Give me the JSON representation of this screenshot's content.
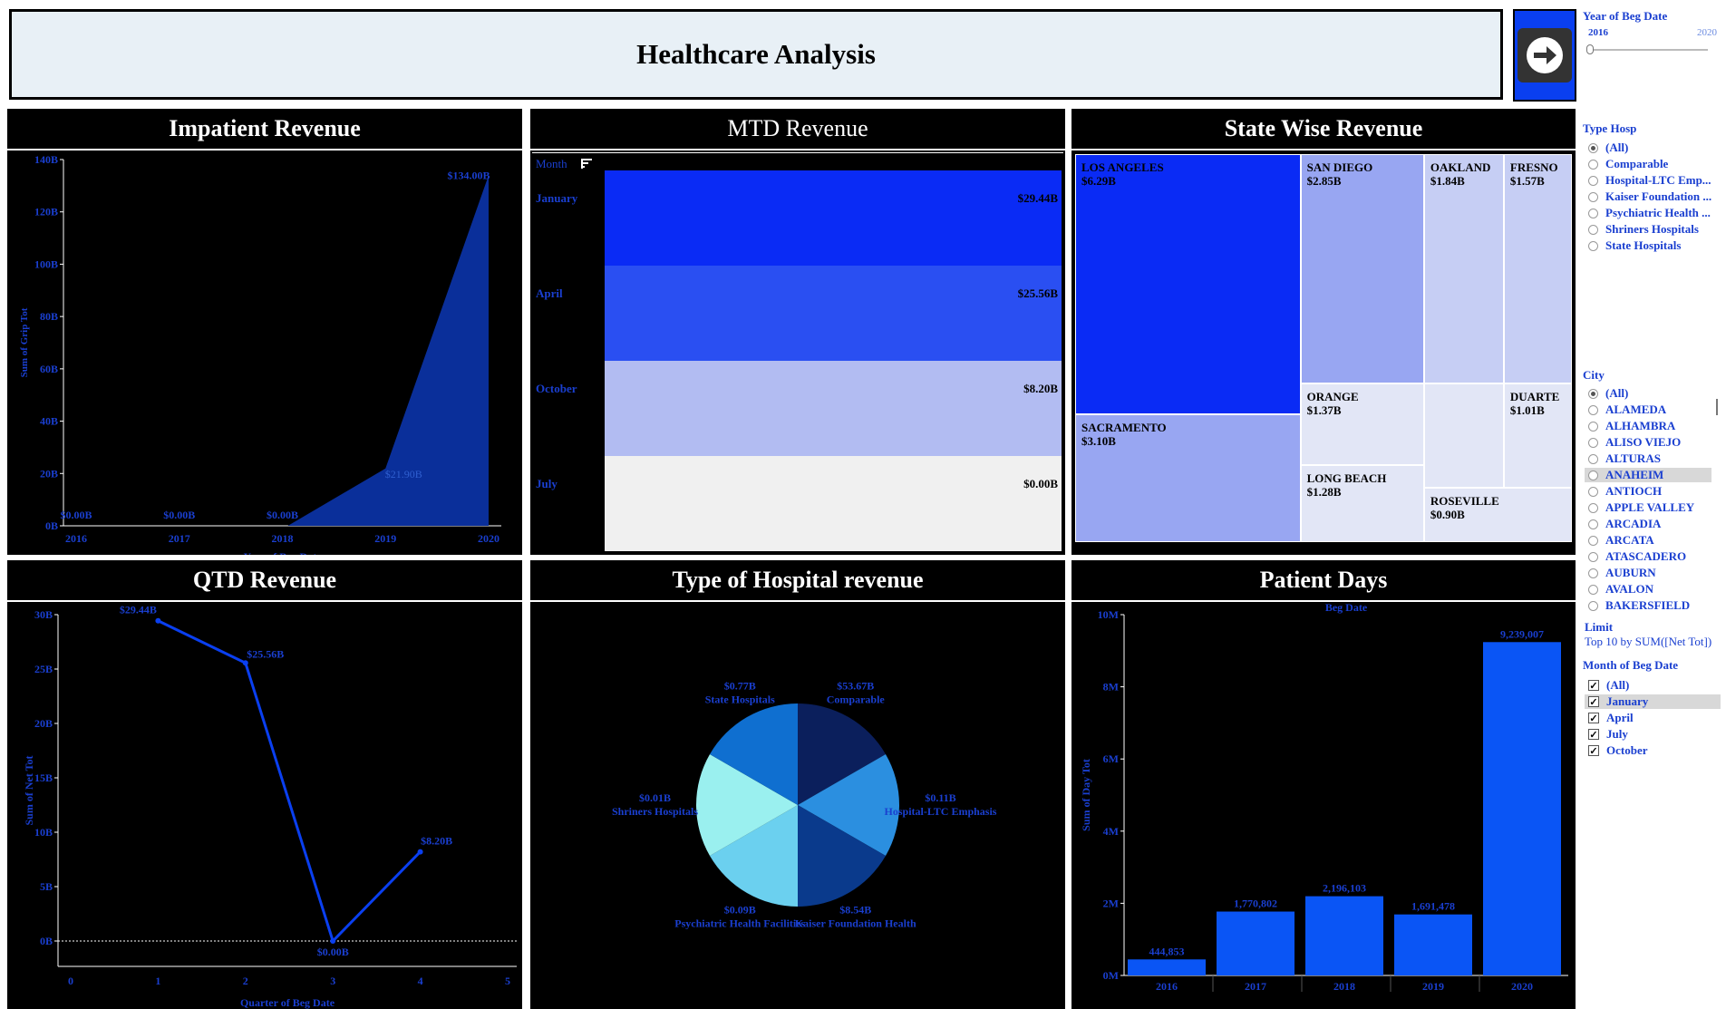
{
  "header": {
    "title": "Healthcare Analysis"
  },
  "filters": {
    "year": {
      "title": "Year of Beg Date",
      "min_label": "2016",
      "max_label": "2020"
    },
    "type_hosp": {
      "title": "Type Hosp",
      "options": [
        "(All)",
        "Comparable",
        "Hospital-LTC Emp...",
        "Kaiser Foundation ...",
        "Psychiatric Health ...",
        "Shriners Hospitals",
        "State Hospitals"
      ],
      "selected": "(All)"
    },
    "city": {
      "title": "City",
      "options": [
        "(All)",
        "ALAMEDA",
        "ALHAMBRA",
        "ALISO VIEJO",
        "ALTURAS",
        "ANAHEIM",
        "ANTIOCH",
        "APPLE VALLEY",
        "ARCADIA",
        "ARCATA",
        "ATASCADERO",
        "AUBURN",
        "AVALON",
        "BAKERSFIELD"
      ],
      "selected": "(All)",
      "hovered": "ANAHEIM"
    },
    "limit": {
      "title": "Limit",
      "text": "Top 10 by SUM([Net Tot])"
    },
    "month": {
      "title": "Month of Beg Date",
      "options": [
        "(All)",
        "January",
        "April",
        "July",
        "October"
      ],
      "hovered": "January"
    }
  },
  "panels": {
    "inpatient": {
      "title": "Impatient Revenue"
    },
    "mtd": {
      "title": "MTD Revenue",
      "col_header": "Month"
    },
    "state": {
      "title": "State Wise Revenue"
    },
    "qtd": {
      "title": "QTD Revenue"
    },
    "type": {
      "title": "Type of Hospital revenue"
    },
    "days": {
      "title": "Patient Days"
    }
  },
  "colors": {
    "accent": "#0a3ff0",
    "link": "#1a3fd0",
    "area": "#0a2f9a"
  },
  "chart_data": [
    {
      "id": "inpatient",
      "type": "area",
      "title": "Impatient Revenue",
      "xlabel": "Year of Beg Date",
      "ylabel": "Sum of Grip Tot",
      "x": [
        "2016",
        "2017",
        "2018",
        "2019",
        "2020"
      ],
      "values": [
        0,
        0,
        0,
        21.9,
        134.0
      ],
      "labels": [
        "$0.00B",
        "$0.00B",
        "$0.00B",
        "$21.90B",
        "$134.00B"
      ],
      "ylim": [
        0,
        140
      ],
      "yticks": [
        "0B",
        "20B",
        "40B",
        "60B",
        "80B",
        "100B",
        "120B",
        "140B"
      ]
    },
    {
      "id": "mtd",
      "type": "table",
      "title": "MTD Revenue",
      "categories": [
        "January",
        "April",
        "October",
        "July"
      ],
      "values": [
        29.44,
        25.56,
        8.2,
        0.0
      ],
      "labels": [
        "$29.44B",
        "$25.56B",
        "$8.20B",
        "$0.00B"
      ],
      "colors": [
        "#0a2bf5",
        "#2a4ff2",
        "#b2bcf2",
        "#f0f0f0"
      ]
    },
    {
      "id": "state",
      "type": "heatmap",
      "title": "State Wise Revenue",
      "categories": [
        "LOS ANGELES",
        "SACRAMENTO",
        "SAN DIEGO",
        "OAKLAND",
        "FRESNO",
        "ORANGE",
        "LONG BEACH",
        "DUARTE",
        "ROSEVILLE"
      ],
      "values": [
        6.29,
        3.1,
        2.85,
        1.84,
        1.57,
        1.37,
        1.28,
        1.01,
        0.9
      ],
      "labels": [
        "$6.29B",
        "$3.10B",
        "$2.85B",
        "$1.84B",
        "$1.57B",
        "$1.37B",
        "$1.28B",
        "$1.01B",
        "$0.90B"
      ]
    },
    {
      "id": "qtd",
      "type": "line",
      "title": "QTD Revenue",
      "xlabel": "Quarter of Beg Date",
      "ylabel": "Sum of Net Tot",
      "x": [
        1,
        2,
        3,
        4
      ],
      "values": [
        29.44,
        25.56,
        0.0,
        8.2
      ],
      "labels": [
        "$29.44B",
        "$25.56B",
        "$0.00B",
        "$8.20B"
      ],
      "xlim": [
        0,
        5
      ],
      "ylim": [
        0,
        30
      ],
      "yticks": [
        "0B",
        "5B",
        "10B",
        "15B",
        "20B",
        "25B",
        "30B"
      ]
    },
    {
      "id": "type",
      "type": "pie",
      "title": "Type of Hospital revenue",
      "categories": [
        "Comparable",
        "Hospital-LTC Emphasis",
        "Kaiser Foundation Health",
        "Psychiatric Health Facilities",
        "Shriners Hospitals",
        "State Hospitals"
      ],
      "values": [
        53.67,
        0.11,
        8.54,
        0.09,
        0.01,
        0.77
      ],
      "labels": [
        "$53.67B",
        "$0.11B",
        "$8.54B",
        "$0.09B",
        "$0.01B",
        "$0.77B"
      ],
      "colors": [
        "#0b1f5c",
        "#2b8fe0",
        "#0a3a8c",
        "#6bd0ef",
        "#9af0ef",
        "#0f6fd0"
      ]
    },
    {
      "id": "days",
      "type": "bar",
      "title": "Patient Days",
      "top_label": "Beg Date",
      "ylabel": "Sum of Day Tot",
      "categories": [
        "2016",
        "2017",
        "2018",
        "2019",
        "2020"
      ],
      "values": [
        444853,
        1770802,
        2196103,
        1691478,
        9239007
      ],
      "labels": [
        "444,853",
        "1,770,802",
        "2,196,103",
        "1,691,478",
        "9,239,007"
      ],
      "ylim": [
        0,
        10000000
      ],
      "yticks": [
        "0M",
        "2M",
        "4M",
        "6M",
        "8M",
        "10M"
      ]
    }
  ]
}
